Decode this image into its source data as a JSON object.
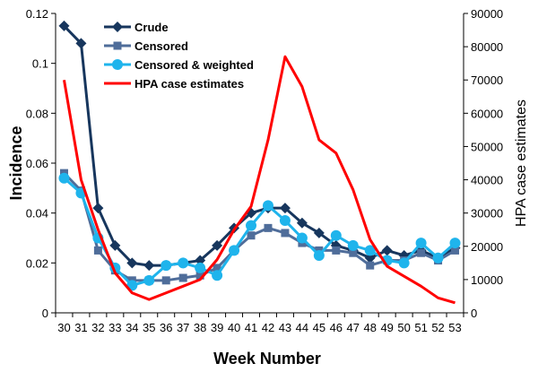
{
  "chart_data": {
    "type": "line",
    "title": "",
    "xlabel": "Week Number",
    "ylabel": "Incidence",
    "y2label": "HPA case estimates",
    "categories": [
      "30",
      "31",
      "32",
      "33",
      "34",
      "35",
      "36",
      "37",
      "38",
      "39",
      "40",
      "41",
      "42",
      "43",
      "44",
      "45",
      "46",
      "47",
      "48",
      "49",
      "50",
      "51",
      "52",
      "53"
    ],
    "ylim": [
      0,
      0.12
    ],
    "yticks": [
      0,
      0.02,
      0.04,
      0.06,
      0.08,
      0.1,
      0.12
    ],
    "ytick_labels": [
      "0",
      "0.02",
      "0.04",
      "0.06",
      "0.08",
      "0.1",
      "0.12"
    ],
    "y2lim": [
      0,
      90000
    ],
    "y2ticks": [
      0,
      10000,
      20000,
      30000,
      40000,
      50000,
      60000,
      70000,
      80000,
      90000
    ],
    "y2tick_labels": [
      "0",
      "10000",
      "20000",
      "30000",
      "40000",
      "50000",
      "60000",
      "70000",
      "80000",
      "90000"
    ],
    "grid": false,
    "legend_position": "top-left",
    "series": [
      {
        "name": "Crude",
        "axis": "left",
        "color": "#17365D",
        "marker": "diamond",
        "values": [
          0.115,
          0.108,
          0.042,
          0.027,
          0.02,
          0.019,
          0.019,
          0.02,
          0.021,
          0.027,
          0.034,
          0.04,
          0.042,
          0.042,
          0.036,
          0.032,
          0.027,
          0.025,
          0.022,
          0.025,
          0.023,
          0.025,
          0.022,
          0.026
        ]
      },
      {
        "name": "Censored",
        "axis": "left",
        "color": "#4F6D9A",
        "marker": "square",
        "values": [
          0.056,
          0.049,
          0.025,
          0.017,
          0.013,
          0.013,
          0.013,
          0.014,
          0.015,
          0.018,
          0.025,
          0.031,
          0.034,
          0.032,
          0.028,
          0.025,
          0.025,
          0.024,
          0.019,
          0.021,
          0.021,
          0.024,
          0.021,
          0.025
        ]
      },
      {
        "name": "Censored & weighted",
        "axis": "left",
        "color": "#1FB4EC",
        "marker": "circle",
        "values": [
          0.054,
          0.048,
          0.03,
          0.018,
          0.011,
          0.013,
          0.019,
          0.02,
          0.018,
          0.015,
          0.025,
          0.035,
          0.043,
          0.037,
          0.03,
          0.023,
          0.031,
          0.027,
          0.025,
          0.021,
          0.02,
          0.028,
          0.022,
          0.028
        ]
      },
      {
        "name": "HPA case estimates",
        "axis": "right",
        "color": "#FF0000",
        "marker": "none",
        "values": [
          70000,
          40000,
          25000,
          12000,
          6000,
          4000,
          6000,
          8000,
          10000,
          16000,
          25000,
          32000,
          52000,
          77000,
          68000,
          52000,
          48000,
          37000,
          22000,
          14000,
          11000,
          8000,
          4500,
          3000
        ]
      }
    ]
  }
}
